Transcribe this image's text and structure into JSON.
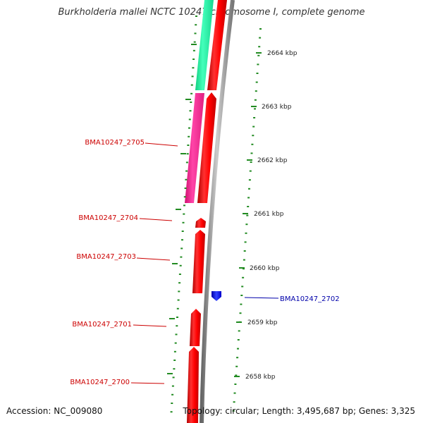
{
  "title": "Burkholderia mallei NCTC 10247 chromosome I, complete genome",
  "footer": {
    "accession": "Accession: NC_009080",
    "summary": "Topology: circular; Length: 3,495,687 bp; Genes: 3,325"
  },
  "scale_labels": [
    "2664 kbp",
    "2663 kbp",
    "2662 kbp",
    "2661 kbp",
    "2660 kbp",
    "2659 kbp",
    "2658 kbp"
  ],
  "gene_labels": [
    "BMA10247_2705",
    "BMA10247_2704",
    "BMA10247_2703",
    "BMA10247_2702",
    "BMA10247_2701",
    "BMA10247_2700"
  ],
  "colors": {
    "reverse_strand": "#ff0000",
    "forward_strand": "#0000ff",
    "label_reverse": "#cc0000",
    "label_forward": "#0000aa",
    "feature_green": "#33ffaa",
    "feature_pink": "#ff3399",
    "backbone": "#888888",
    "dots": "#228b22"
  }
}
